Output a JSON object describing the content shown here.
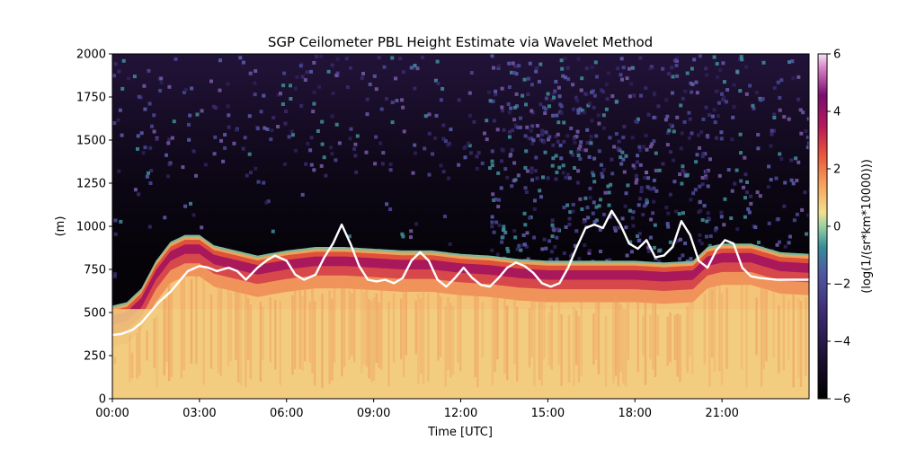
{
  "chart_data": {
    "type": "heatmap",
    "title": "SGP Ceilometer PBL Height Estimate via Wavelet Method",
    "xlabel": "Time [UTC]",
    "ylabel": "(m)",
    "colorbar_label": "(log(1/(sr*km*10000)))",
    "colormap": "magma-spectral",
    "xlim": [
      0,
      24
    ],
    "ylim": [
      0,
      2000
    ],
    "clim": [
      -6,
      6
    ],
    "x_tick_labels": [
      "00:00",
      "03:00",
      "06:00",
      "09:00",
      "12:00",
      "15:00",
      "18:00",
      "21:00"
    ],
    "x_tick_values": [
      0,
      3,
      6,
      9,
      12,
      15,
      18,
      21
    ],
    "y_tick_values": [
      0,
      250,
      500,
      750,
      1000,
      1250,
      1500,
      1750,
      2000
    ],
    "y_tick_labels": [
      "0",
      "250",
      "500",
      "750",
      "1000",
      "1250",
      "1500",
      "1750",
      "2000"
    ],
    "cbar_tick_values": [
      -6,
      -4,
      -2,
      0,
      2,
      4,
      6
    ],
    "cbar_tick_labels": [
      "−6",
      "−4",
      "−2",
      "0",
      "2",
      "4",
      "6"
    ],
    "layer_top_m": {
      "hours": [
        0,
        0.5,
        1,
        1.5,
        2,
        2.5,
        3,
        3.5,
        4,
        4.5,
        5,
        6,
        7,
        8,
        9,
        10,
        11,
        12,
        13,
        14,
        15,
        16,
        17,
        18,
        19,
        20,
        20.5,
        21,
        22,
        23,
        24
      ],
      "values": [
        540,
        560,
        640,
        800,
        910,
        950,
        950,
        890,
        870,
        850,
        830,
        860,
        880,
        880,
        870,
        860,
        860,
        840,
        830,
        810,
        800,
        800,
        800,
        800,
        790,
        800,
        880,
        900,
        900,
        850,
        840
      ]
    },
    "pbl_series": {
      "color": "#ffffff",
      "x": [
        0,
        0.3,
        0.7,
        1,
        1.3,
        1.6,
        2,
        2.3,
        2.6,
        3,
        3.3,
        3.6,
        4,
        4.3,
        4.6,
        5,
        5.3,
        5.6,
        6,
        6.3,
        6.6,
        7,
        7.3,
        7.6,
        7.9,
        8.2,
        8.5,
        8.8,
        9.1,
        9.4,
        9.7,
        10,
        10.3,
        10.6,
        10.9,
        11.2,
        11.5,
        11.8,
        12.1,
        12.4,
        12.7,
        13,
        13.3,
        13.6,
        13.9,
        14.2,
        14.5,
        14.8,
        15.1,
        15.4,
        15.7,
        16,
        16.3,
        16.6,
        16.9,
        17.2,
        17.5,
        17.8,
        18.1,
        18.4,
        18.7,
        19,
        19.3,
        19.6,
        19.9,
        20.2,
        20.5,
        20.8,
        21.1,
        21.4,
        21.7,
        22,
        22.3,
        22.6,
        22.9,
        23.3,
        23.6,
        24
      ],
      "y": [
        370,
        375,
        400,
        440,
        500,
        560,
        620,
        680,
        740,
        770,
        760,
        740,
        760,
        740,
        690,
        760,
        800,
        830,
        800,
        720,
        690,
        720,
        820,
        900,
        1010,
        900,
        770,
        690,
        680,
        690,
        670,
        700,
        800,
        850,
        800,
        690,
        650,
        700,
        760,
        700,
        660,
        650,
        700,
        760,
        790,
        770,
        730,
        670,
        650,
        670,
        760,
        880,
        990,
        1010,
        990,
        1090,
        1010,
        900,
        870,
        920,
        820,
        830,
        880,
        1030,
        950,
        800,
        760,
        860,
        920,
        900,
        760,
        710,
        700,
        695,
        690,
        690,
        690,
        690
      ]
    }
  }
}
